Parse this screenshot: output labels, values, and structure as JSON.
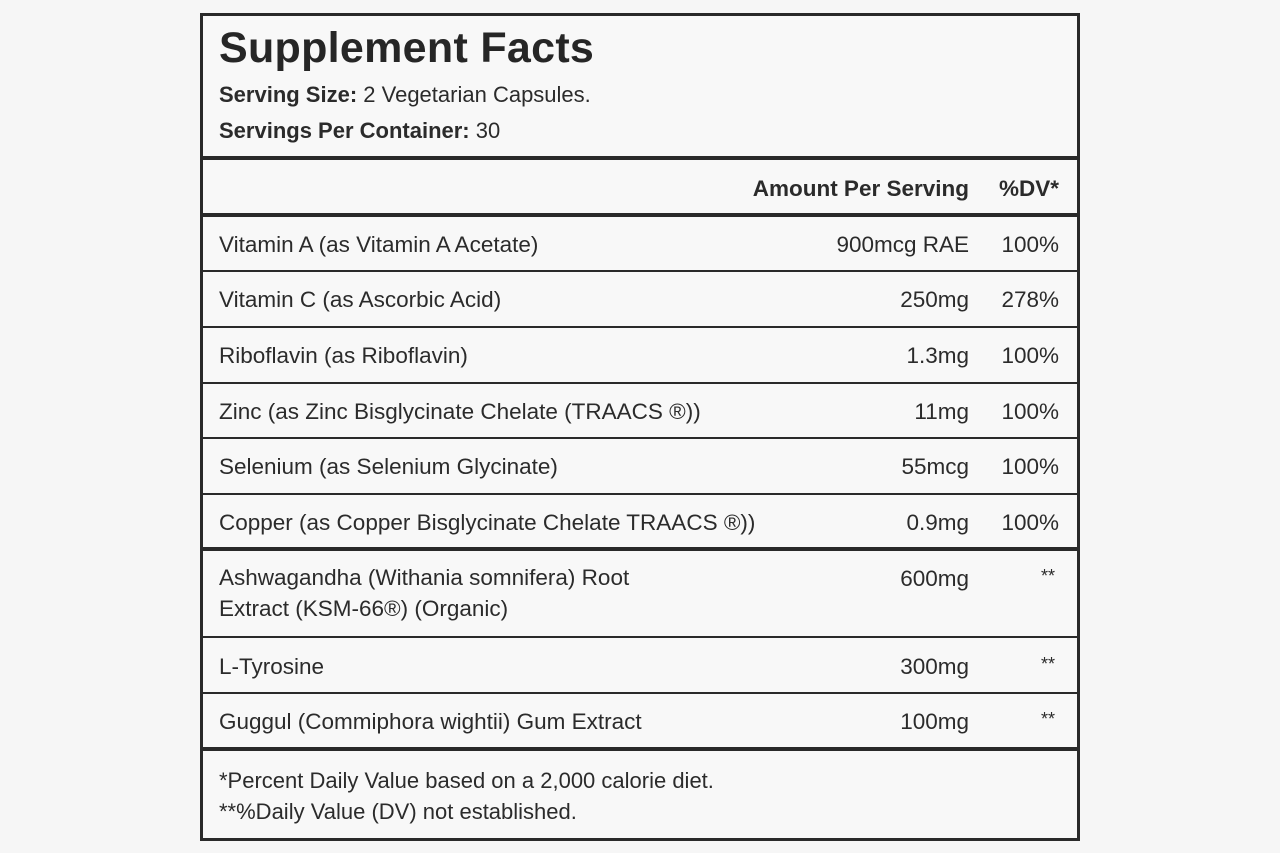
{
  "title": "Supplement Facts",
  "serving_size": {
    "label": "Serving Size:",
    "value": "2 Vegetarian Capsules."
  },
  "servings_per_container": {
    "label": "Servings Per Container:",
    "value": "30"
  },
  "columns": {
    "amount": "Amount Per Serving",
    "dv": "%DV*"
  },
  "rows": [
    {
      "name": "Vitamin A (as Vitamin A Acetate)",
      "amount": "900mcg RAE",
      "dv": "100%"
    },
    {
      "name": "Vitamin C (as Ascorbic Acid)",
      "amount": "250mg",
      "dv": "278%"
    },
    {
      "name": "Riboflavin (as Riboflavin)",
      "amount": "1.3mg",
      "dv": "100%"
    },
    {
      "name": "Zinc (as Zinc Bisglycinate Chelate (TRAACS ®))",
      "amount": "11mg",
      "dv": "100%"
    },
    {
      "name": "Selenium (as Selenium Glycinate)",
      "amount": "55mcg",
      "dv": "100%"
    },
    {
      "name": "Copper (as Copper Bisglycinate Chelate TRAACS ®))",
      "amount": "0.9mg",
      "dv": "100%"
    }
  ],
  "other_rows": [
    {
      "name_line1": "Ashwagandha (Withania somnifera) Root",
      "name_line2": "Extract (KSM-66®) (Organic)",
      "amount": "600mg",
      "dv": "**"
    },
    {
      "name": "L-Tyrosine",
      "amount": "300mg",
      "dv": "**"
    },
    {
      "name": "Guggul (Commiphora wightii) Gum Extract",
      "amount": "100mg",
      "dv": "**"
    }
  ],
  "footnotes": [
    "*Percent Daily Value based on a 2,000 calorie diet.",
    "**%Daily Value (DV) not established."
  ]
}
